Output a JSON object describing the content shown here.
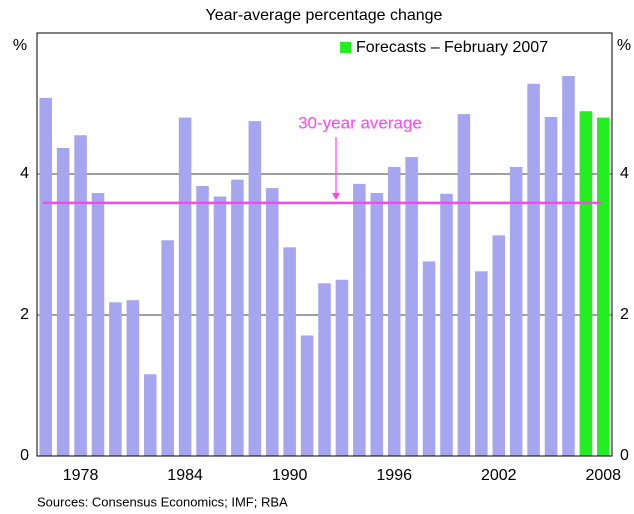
{
  "chart_data": {
    "type": "bar",
    "title": "Year-average percentage change",
    "y_label": "%",
    "y2_label": "%",
    "source": "Sources: Consensus Economics; IMF; RBA",
    "categories": [
      null,
      null,
      "1978",
      null,
      null,
      null,
      null,
      null,
      "1984",
      null,
      null,
      null,
      null,
      null,
      "1990",
      null,
      null,
      null,
      null,
      null,
      "1996",
      null,
      null,
      null,
      null,
      null,
      "2002",
      null,
      null,
      null,
      null,
      null,
      "2008"
    ],
    "series": [
      {
        "color": "#a6a6f0",
        "values": [
          5.08,
          4.37,
          4.55,
          3.73,
          2.18,
          2.21,
          1.16,
          3.06,
          4.8,
          3.83,
          3.68,
          3.92,
          4.75,
          3.8,
          2.96,
          1.71,
          2.45,
          2.5,
          3.86,
          3.73,
          4.1,
          4.24,
          2.76,
          3.72,
          4.85,
          2.62,
          3.13,
          4.1,
          5.28,
          4.81,
          5.39,
          null,
          null
        ]
      },
      {
        "name": "Forecasts – February 2007",
        "color": "#22ee22",
        "values": [
          null,
          null,
          null,
          null,
          null,
          null,
          null,
          null,
          null,
          null,
          null,
          null,
          null,
          null,
          null,
          null,
          null,
          null,
          null,
          null,
          null,
          null,
          null,
          null,
          null,
          null,
          null,
          null,
          null,
          null,
          null,
          4.89,
          4.8
        ]
      }
    ],
    "average": {
      "label": "30-year average",
      "value": 3.59,
      "color": "#ff44ee"
    },
    "ylim": [
      0,
      6
    ],
    "yticks": [
      0,
      2,
      4
    ],
    "y2lim": [
      0,
      6
    ],
    "y2ticks": [
      0,
      2,
      4
    ],
    "grid": true,
    "legend": "top-right"
  }
}
